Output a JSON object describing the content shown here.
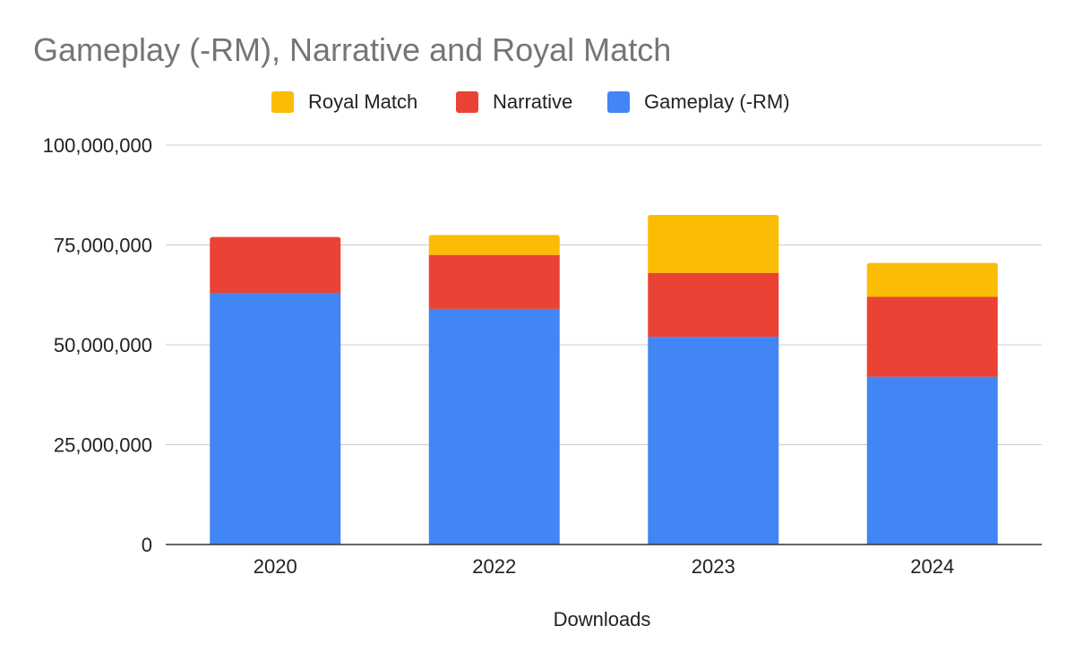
{
  "chart_data": {
    "type": "bar",
    "stacked": true,
    "title": "Gameplay (-RM), Narrative and Royal Match",
    "xlabel": "Downloads",
    "ylabel": "",
    "categories": [
      "2020",
      "2022",
      "2023",
      "2024"
    ],
    "ylim": [
      0,
      100000000
    ],
    "yticks": [
      0,
      25000000,
      50000000,
      75000000,
      100000000
    ],
    "ytick_labels": [
      "0",
      "25,000,000",
      "50,000,000",
      "75,000,000",
      "100,000,000"
    ],
    "grid": true,
    "legend_position": "top",
    "legend_order": [
      "Royal Match",
      "Narrative",
      "Gameplay (-RM)"
    ],
    "series": [
      {
        "name": "Gameplay (-RM)",
        "color": "#4285f4",
        "values": [
          63000000,
          59000000,
          52000000,
          42000000
        ]
      },
      {
        "name": "Narrative",
        "color": "#ea4335",
        "values": [
          14000000,
          13500000,
          16000000,
          20000000
        ]
      },
      {
        "name": "Royal Match",
        "color": "#fbbc04",
        "values": [
          0,
          5000000,
          14500000,
          8500000
        ]
      }
    ]
  }
}
